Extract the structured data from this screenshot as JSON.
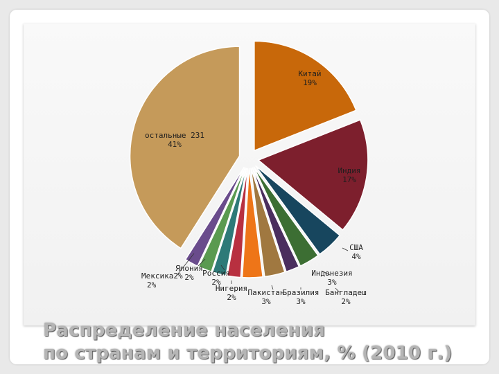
{
  "slide": {
    "title_line1": "Распределение населения",
    "title_line2": "по странам и территориям, % (2010 г.)"
  },
  "chart_data": {
    "type": "pie",
    "title": "Распределение населения по странам и территориям, % (2010 г.)",
    "unit": "%",
    "slices": [
      {
        "name": "Китай",
        "value": 19,
        "label": "19%",
        "color": "#c8680a"
      },
      {
        "name": "Индия",
        "value": 17,
        "label": "17%",
        "color": "#7d1f2d"
      },
      {
        "name": "США",
        "value": 4,
        "label": "4%",
        "color": "#17465e"
      },
      {
        "name": "Индонезия",
        "value": 3,
        "label": "3%",
        "color": "#3c6e33"
      },
      {
        "name": "Бангладеш",
        "value": 2,
        "label": "2%",
        "color": "#4a2e5e"
      },
      {
        "name": "Бразилия",
        "value": 3,
        "label": "3%",
        "color": "#a07840"
      },
      {
        "name": "Пакистан",
        "value": 3,
        "label": "3%",
        "color": "#ee7518"
      },
      {
        "name": "Нигерия",
        "value": 2,
        "label": "2%",
        "color": "#b83040"
      },
      {
        "name": "Россия",
        "value": 2,
        "label": "2%",
        "color": "#2e7a78"
      },
      {
        "name": "Япония",
        "value": 2,
        "label": "2%",
        "color": "#5a9a50"
      },
      {
        "name": "Мексика",
        "value": 2,
        "label": "2%",
        "color": "#6a4c8c"
      },
      {
        "name": "остальные 231",
        "value": 41,
        "label": "41%",
        "color": "#c59a5a"
      }
    ],
    "exploded": true,
    "legend": "none"
  }
}
